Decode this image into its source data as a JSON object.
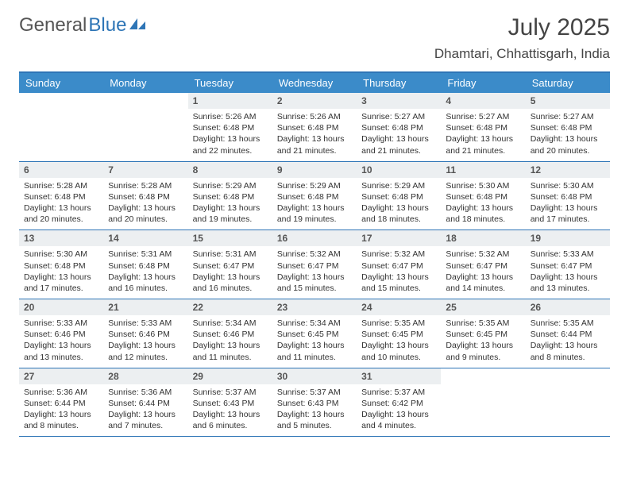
{
  "logo": {
    "part1": "General",
    "part2": "Blue"
  },
  "header": {
    "month": "July 2025",
    "location": "Dhamtari, Chhattisgarh, India"
  },
  "colors": {
    "accent": "#3b8bc9",
    "border": "#2e75b6",
    "daybar": "#eceff1",
    "text": "#333333",
    "header_text": "#444444"
  },
  "dow": [
    "Sunday",
    "Monday",
    "Tuesday",
    "Wednesday",
    "Thursday",
    "Friday",
    "Saturday"
  ],
  "weeks": [
    [
      null,
      null,
      {
        "d": "1",
        "sr": "Sunrise: 5:26 AM",
        "ss": "Sunset: 6:48 PM",
        "dl1": "Daylight: 13 hours",
        "dl2": "and 22 minutes."
      },
      {
        "d": "2",
        "sr": "Sunrise: 5:26 AM",
        "ss": "Sunset: 6:48 PM",
        "dl1": "Daylight: 13 hours",
        "dl2": "and 21 minutes."
      },
      {
        "d": "3",
        "sr": "Sunrise: 5:27 AM",
        "ss": "Sunset: 6:48 PM",
        "dl1": "Daylight: 13 hours",
        "dl2": "and 21 minutes."
      },
      {
        "d": "4",
        "sr": "Sunrise: 5:27 AM",
        "ss": "Sunset: 6:48 PM",
        "dl1": "Daylight: 13 hours",
        "dl2": "and 21 minutes."
      },
      {
        "d": "5",
        "sr": "Sunrise: 5:27 AM",
        "ss": "Sunset: 6:48 PM",
        "dl1": "Daylight: 13 hours",
        "dl2": "and 20 minutes."
      }
    ],
    [
      {
        "d": "6",
        "sr": "Sunrise: 5:28 AM",
        "ss": "Sunset: 6:48 PM",
        "dl1": "Daylight: 13 hours",
        "dl2": "and 20 minutes."
      },
      {
        "d": "7",
        "sr": "Sunrise: 5:28 AM",
        "ss": "Sunset: 6:48 PM",
        "dl1": "Daylight: 13 hours",
        "dl2": "and 20 minutes."
      },
      {
        "d": "8",
        "sr": "Sunrise: 5:29 AM",
        "ss": "Sunset: 6:48 PM",
        "dl1": "Daylight: 13 hours",
        "dl2": "and 19 minutes."
      },
      {
        "d": "9",
        "sr": "Sunrise: 5:29 AM",
        "ss": "Sunset: 6:48 PM",
        "dl1": "Daylight: 13 hours",
        "dl2": "and 19 minutes."
      },
      {
        "d": "10",
        "sr": "Sunrise: 5:29 AM",
        "ss": "Sunset: 6:48 PM",
        "dl1": "Daylight: 13 hours",
        "dl2": "and 18 minutes."
      },
      {
        "d": "11",
        "sr": "Sunrise: 5:30 AM",
        "ss": "Sunset: 6:48 PM",
        "dl1": "Daylight: 13 hours",
        "dl2": "and 18 minutes."
      },
      {
        "d": "12",
        "sr": "Sunrise: 5:30 AM",
        "ss": "Sunset: 6:48 PM",
        "dl1": "Daylight: 13 hours",
        "dl2": "and 17 minutes."
      }
    ],
    [
      {
        "d": "13",
        "sr": "Sunrise: 5:30 AM",
        "ss": "Sunset: 6:48 PM",
        "dl1": "Daylight: 13 hours",
        "dl2": "and 17 minutes."
      },
      {
        "d": "14",
        "sr": "Sunrise: 5:31 AM",
        "ss": "Sunset: 6:48 PM",
        "dl1": "Daylight: 13 hours",
        "dl2": "and 16 minutes."
      },
      {
        "d": "15",
        "sr": "Sunrise: 5:31 AM",
        "ss": "Sunset: 6:47 PM",
        "dl1": "Daylight: 13 hours",
        "dl2": "and 16 minutes."
      },
      {
        "d": "16",
        "sr": "Sunrise: 5:32 AM",
        "ss": "Sunset: 6:47 PM",
        "dl1": "Daylight: 13 hours",
        "dl2": "and 15 minutes."
      },
      {
        "d": "17",
        "sr": "Sunrise: 5:32 AM",
        "ss": "Sunset: 6:47 PM",
        "dl1": "Daylight: 13 hours",
        "dl2": "and 15 minutes."
      },
      {
        "d": "18",
        "sr": "Sunrise: 5:32 AM",
        "ss": "Sunset: 6:47 PM",
        "dl1": "Daylight: 13 hours",
        "dl2": "and 14 minutes."
      },
      {
        "d": "19",
        "sr": "Sunrise: 5:33 AM",
        "ss": "Sunset: 6:47 PM",
        "dl1": "Daylight: 13 hours",
        "dl2": "and 13 minutes."
      }
    ],
    [
      {
        "d": "20",
        "sr": "Sunrise: 5:33 AM",
        "ss": "Sunset: 6:46 PM",
        "dl1": "Daylight: 13 hours",
        "dl2": "and 13 minutes."
      },
      {
        "d": "21",
        "sr": "Sunrise: 5:33 AM",
        "ss": "Sunset: 6:46 PM",
        "dl1": "Daylight: 13 hours",
        "dl2": "and 12 minutes."
      },
      {
        "d": "22",
        "sr": "Sunrise: 5:34 AM",
        "ss": "Sunset: 6:46 PM",
        "dl1": "Daylight: 13 hours",
        "dl2": "and 11 minutes."
      },
      {
        "d": "23",
        "sr": "Sunrise: 5:34 AM",
        "ss": "Sunset: 6:45 PM",
        "dl1": "Daylight: 13 hours",
        "dl2": "and 11 minutes."
      },
      {
        "d": "24",
        "sr": "Sunrise: 5:35 AM",
        "ss": "Sunset: 6:45 PM",
        "dl1": "Daylight: 13 hours",
        "dl2": "and 10 minutes."
      },
      {
        "d": "25",
        "sr": "Sunrise: 5:35 AM",
        "ss": "Sunset: 6:45 PM",
        "dl1": "Daylight: 13 hours",
        "dl2": "and 9 minutes."
      },
      {
        "d": "26",
        "sr": "Sunrise: 5:35 AM",
        "ss": "Sunset: 6:44 PM",
        "dl1": "Daylight: 13 hours",
        "dl2": "and 8 minutes."
      }
    ],
    [
      {
        "d": "27",
        "sr": "Sunrise: 5:36 AM",
        "ss": "Sunset: 6:44 PM",
        "dl1": "Daylight: 13 hours",
        "dl2": "and 8 minutes."
      },
      {
        "d": "28",
        "sr": "Sunrise: 5:36 AM",
        "ss": "Sunset: 6:44 PM",
        "dl1": "Daylight: 13 hours",
        "dl2": "and 7 minutes."
      },
      {
        "d": "29",
        "sr": "Sunrise: 5:37 AM",
        "ss": "Sunset: 6:43 PM",
        "dl1": "Daylight: 13 hours",
        "dl2": "and 6 minutes."
      },
      {
        "d": "30",
        "sr": "Sunrise: 5:37 AM",
        "ss": "Sunset: 6:43 PM",
        "dl1": "Daylight: 13 hours",
        "dl2": "and 5 minutes."
      },
      {
        "d": "31",
        "sr": "Sunrise: 5:37 AM",
        "ss": "Sunset: 6:42 PM",
        "dl1": "Daylight: 13 hours",
        "dl2": "and 4 minutes."
      },
      null,
      null
    ]
  ]
}
